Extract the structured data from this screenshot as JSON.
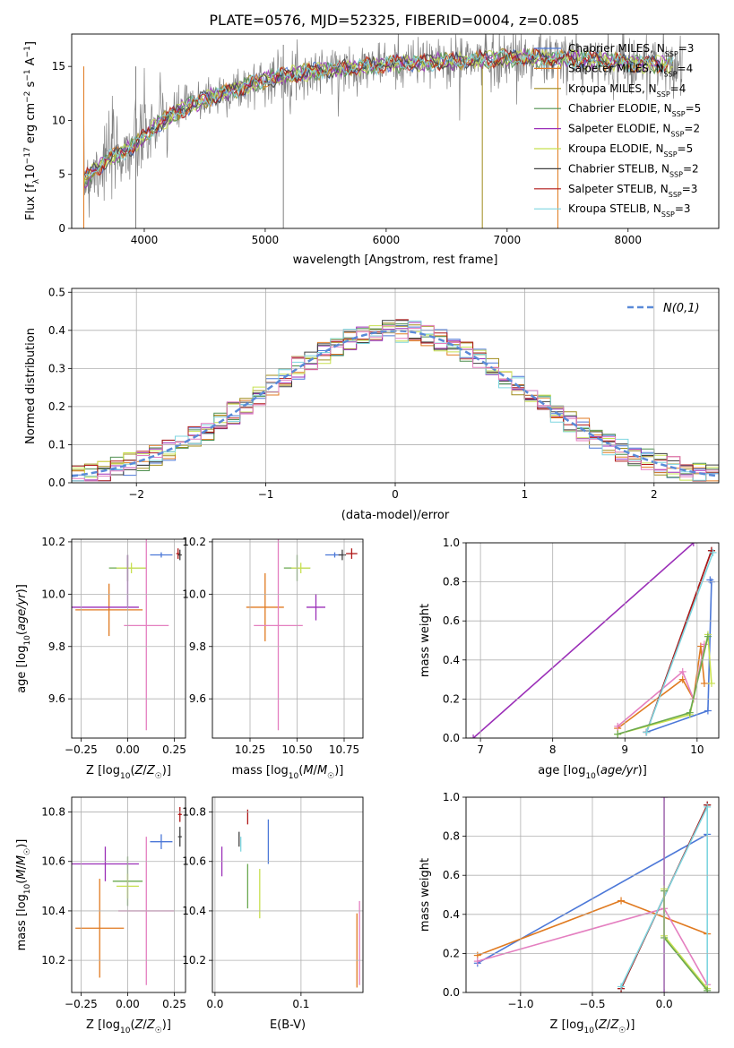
{
  "figure": {
    "title": "PLATE=0576, MJD=52325, FIBERID=0004, z=0.085"
  },
  "colors": {
    "blue": "#4c78d8",
    "orange": "#e07a20",
    "olive": "#a08c1c",
    "green": "#4f8f4f",
    "purple": "#9b2fb8",
    "yellowgreen": "#c8e050",
    "black": "#404040",
    "red": "#b01818",
    "cyan": "#7fd6e0",
    "gray": "#808080",
    "pink": "#e47fc0",
    "pale_green": "#6aa84f",
    "gaussian": "#5a8ad8"
  },
  "chart_data": [
    {
      "id": "spectrum",
      "type": "line",
      "xlabel": "wavelength [Angstrom, rest frame]",
      "ylabel": "Flux [f_λ10^-17 erg cm^-2 s^-1 A^-1]",
      "xlim": [
        3400,
        8750
      ],
      "ylim": [
        0,
        18
      ],
      "xticks": [
        4000,
        5000,
        6000,
        7000,
        8000
      ],
      "yticks": [
        0,
        5,
        10,
        15
      ],
      "grid": false,
      "legend_position": "top-right",
      "legend": [
        {
          "name": "Chabrier MILES",
          "n": "3",
          "color": "#4c78d8"
        },
        {
          "name": "Salpeter MILES",
          "n": "4",
          "color": "#e07a20"
        },
        {
          "name": "Kroupa MILES",
          "n": "4",
          "color": "#a08c1c"
        },
        {
          "name": "Chabrier ELODIE",
          "n": "5",
          "color": "#4f8f4f"
        },
        {
          "name": "Salpeter ELODIE",
          "n": "2",
          "color": "#9b2fb8"
        },
        {
          "name": "Kroupa ELODIE",
          "n": "5",
          "color": "#c8e050"
        },
        {
          "name": "Chabrier STELIB",
          "n": "2",
          "color": "#404040"
        },
        {
          "name": "Salpeter STELIB",
          "n": "3",
          "color": "#b01818"
        },
        {
          "name": "Kroupa STELIB",
          "n": "3",
          "color": "#7fd6e0"
        }
      ],
      "data_trend": {
        "x": [
          3500,
          3700,
          3900,
          4100,
          4300,
          4500,
          4800,
          5000,
          5200,
          5500,
          5800,
          6000,
          6300,
          6600,
          7000,
          7200,
          7400,
          7800,
          8200,
          8500
        ],
        "y": [
          4.5,
          6.5,
          7.5,
          9.5,
          11.0,
          12.0,
          13.0,
          13.8,
          14.2,
          14.7,
          15.0,
          15.2,
          15.4,
          15.5,
          15.8,
          15.8,
          15.7,
          15.5,
          15.2,
          15.0
        ]
      }
    },
    {
      "id": "residuals",
      "type": "area",
      "xlabel": "(data-model)/error",
      "ylabel": "Normed distribution",
      "xlim": [
        -2.5,
        2.5
      ],
      "ylim": [
        0,
        0.51
      ],
      "xticks": [
        -2,
        -1,
        0,
        1,
        2
      ],
      "yticks": [
        0.0,
        0.1,
        0.2,
        0.3,
        0.4,
        0.5
      ],
      "grid": true,
      "legend_position": "top-right",
      "gaussian_label": "N(0,1)",
      "bin_width": 0.1
    },
    {
      "id": "age_vs_Z",
      "type": "scatter",
      "xlabel": "Z [log10(Z/Z☉)]",
      "ylabel": "age  [log10(age/yr)]",
      "xlim": [
        -0.3,
        0.31
      ],
      "ylim": [
        9.45,
        10.21
      ],
      "xticks": [
        -0.25,
        0.0,
        0.25
      ],
      "yticks": [
        9.6,
        9.8,
        10.0,
        10.2
      ],
      "grid": true,
      "points": [
        {
          "x": 0.18,
          "xe": 0.06,
          "y": 10.15,
          "ye": 0.01,
          "c": "blue"
        },
        {
          "x": 0.27,
          "xe": 0.01,
          "y": 10.155,
          "ye": 0.02,
          "c": "red"
        },
        {
          "x": 0.28,
          "xe": 0.01,
          "y": 10.15,
          "ye": 0.02,
          "c": "black"
        },
        {
          "x": -0.1,
          "xe": 0.18,
          "y": 9.94,
          "ye": 0.1,
          "c": "orange"
        },
        {
          "x": 0.0,
          "xe": 0.1,
          "y": 10.1,
          "ye": 0.05,
          "c": "pale_green"
        },
        {
          "x": 0.02,
          "xe": 0.08,
          "y": 10.1,
          "ye": 0.02,
          "c": "yellowgreen"
        },
        {
          "x": -0.12,
          "xe": 0.18,
          "y": 9.95,
          "ye": 0.0,
          "c": "purple"
        },
        {
          "x": 0.1,
          "xe": 0.12,
          "y": 9.88,
          "ye": 0.4,
          "c": "pink"
        },
        {
          "x": 0.0,
          "xe": 0.0,
          "y": 10.05,
          "ye": 0.1,
          "c": "purple"
        }
      ]
    },
    {
      "id": "age_vs_mass",
      "type": "scatter",
      "xlabel": "mass [log10(M/M☉)]",
      "ylabel": "",
      "xlim": [
        10.05,
        10.85
      ],
      "ylim": [
        9.45,
        10.21
      ],
      "xticks": [
        10.25,
        10.5,
        10.75
      ],
      "yticks": [
        9.6,
        9.8,
        10.0,
        10.2
      ],
      "grid": true,
      "points": [
        {
          "x": 10.7,
          "xe": 0.05,
          "y": 10.15,
          "ye": 0.01,
          "c": "blue"
        },
        {
          "x": 10.79,
          "xe": 0.03,
          "y": 10.155,
          "ye": 0.02,
          "c": "red"
        },
        {
          "x": 10.74,
          "xe": 0.02,
          "y": 10.15,
          "ye": 0.02,
          "c": "black"
        },
        {
          "x": 10.33,
          "xe": 0.1,
          "y": 9.95,
          "ye": 0.13,
          "c": "orange"
        },
        {
          "x": 10.5,
          "xe": 0.07,
          "y": 10.1,
          "ye": 0.05,
          "c": "pale_green"
        },
        {
          "x": 10.52,
          "xe": 0.05,
          "y": 10.1,
          "ye": 0.02,
          "c": "yellowgreen"
        },
        {
          "x": 10.6,
          "xe": 0.05,
          "y": 9.95,
          "ye": 0.05,
          "c": "purple"
        },
        {
          "x": 10.4,
          "xe": 0.13,
          "y": 9.88,
          "ye": 0.4,
          "c": "pink"
        }
      ]
    },
    {
      "id": "weight_vs_age",
      "type": "line",
      "xlabel": "age  [log10(age/yr)]",
      "ylabel": "mass weight",
      "xlim": [
        6.8,
        10.3
      ],
      "ylim": [
        0,
        1
      ],
      "xticks": [
        7,
        8,
        9,
        10
      ],
      "yticks": [
        0.0,
        0.2,
        0.4,
        0.6,
        0.8,
        1.0
      ],
      "grid": true,
      "series": [
        {
          "c": "purple",
          "x": [
            6.9,
            9.95
          ],
          "y": [
            0.0,
            1.0
          ]
        },
        {
          "c": "blue",
          "x": [
            9.3,
            10.15,
            10.2,
            10.18
          ],
          "y": [
            0.03,
            0.14,
            0.8,
            0.81
          ]
        },
        {
          "c": "orange",
          "x": [
            8.9,
            9.8,
            9.95,
            10.05,
            10.1
          ],
          "y": [
            0.05,
            0.3,
            0.2,
            0.47,
            0.28
          ]
        },
        {
          "c": "pink",
          "x": [
            8.9,
            9.8,
            9.95,
            10.1
          ],
          "y": [
            0.06,
            0.34,
            0.2,
            0.48
          ]
        },
        {
          "c": "black",
          "x": [
            9.3,
            10.2
          ],
          "y": [
            0.03,
            0.96
          ]
        },
        {
          "c": "red",
          "x": [
            9.3,
            10.2
          ],
          "y": [
            0.03,
            0.96
          ]
        },
        {
          "c": "cyan",
          "x": [
            9.3,
            10.22
          ],
          "y": [
            0.03,
            0.95
          ]
        },
        {
          "c": "yellowgreen",
          "x": [
            8.9,
            9.9,
            10.15,
            10.2
          ],
          "y": [
            0.02,
            0.12,
            0.53,
            0.28
          ]
        },
        {
          "c": "pale_green",
          "x": [
            8.9,
            9.9,
            10.15
          ],
          "y": [
            0.02,
            0.13,
            0.52
          ]
        }
      ]
    },
    {
      "id": "mass_vs_Z",
      "type": "scatter",
      "xlabel": "Z [log10(Z/Z☉)]",
      "ylabel": "mass [log10(M/M☉)]",
      "xlim": [
        -0.3,
        0.31
      ],
      "ylim": [
        10.07,
        10.86
      ],
      "xticks": [
        -0.25,
        0.0,
        0.25
      ],
      "yticks": [
        10.2,
        10.4,
        10.6,
        10.8
      ],
      "grid": true,
      "points": [
        {
          "x": 0.18,
          "xe": 0.06,
          "y": 10.68,
          "ye": 0.03,
          "c": "blue"
        },
        {
          "x": 0.28,
          "xe": 0.01,
          "y": 10.79,
          "ye": 0.03,
          "c": "red"
        },
        {
          "x": 0.28,
          "xe": 0.01,
          "y": 10.7,
          "ye": 0.04,
          "c": "black"
        },
        {
          "x": -0.15,
          "xe": 0.13,
          "y": 10.33,
          "ye": 0.2,
          "c": "orange"
        },
        {
          "x": 0.0,
          "xe": 0.08,
          "y": 10.52,
          "ye": 0.1,
          "c": "pale_green"
        },
        {
          "x": 0.0,
          "xe": 0.06,
          "y": 10.5,
          "ye": 0.05,
          "c": "yellowgreen"
        },
        {
          "x": -0.12,
          "xe": 0.18,
          "y": 10.59,
          "ye": 0.07,
          "c": "purple"
        },
        {
          "x": 0.1,
          "xe": 0.15,
          "y": 10.4,
          "ye": 0.3,
          "c": "pink"
        }
      ]
    },
    {
      "id": "mass_vs_ebv",
      "type": "scatter",
      "xlabel": "E(B-V)",
      "ylabel": "",
      "xlim": [
        -0.003,
        0.172
      ],
      "ylim": [
        10.07,
        10.86
      ],
      "xticks": [
        0.0,
        0.1
      ],
      "yticks": [
        10.2,
        10.4,
        10.6,
        10.8
      ],
      "grid": true,
      "points": [
        {
          "x": 0.062,
          "xe": 0.0,
          "y": 10.68,
          "ye": 0.09,
          "c": "blue"
        },
        {
          "x": 0.038,
          "xe": 0.0,
          "y": 10.78,
          "ye": 0.03,
          "c": "red"
        },
        {
          "x": 0.028,
          "xe": 0.0,
          "y": 10.69,
          "ye": 0.03,
          "c": "black"
        },
        {
          "x": 0.165,
          "xe": 0.0,
          "y": 10.24,
          "ye": 0.15,
          "c": "orange"
        },
        {
          "x": 0.038,
          "xe": 0.0,
          "y": 10.5,
          "ye": 0.09,
          "c": "pale_green"
        },
        {
          "x": 0.052,
          "xe": 0.0,
          "y": 10.47,
          "ye": 0.1,
          "c": "yellowgreen"
        },
        {
          "x": 0.008,
          "xe": 0.0,
          "y": 10.6,
          "ye": 0.06,
          "c": "purple"
        },
        {
          "x": 0.168,
          "xe": 0.0,
          "y": 10.27,
          "ye": 0.17,
          "c": "pink"
        },
        {
          "x": 0.03,
          "xe": 0.0,
          "y": 10.67,
          "ye": 0.03,
          "c": "cyan"
        }
      ]
    },
    {
      "id": "weight_vs_Z",
      "type": "line",
      "xlabel": "Z [log10(Z/Z☉)]",
      "ylabel": "mass weight",
      "xlim": [
        -1.38,
        0.38
      ],
      "ylim": [
        0,
        1
      ],
      "xticks": [
        -1.0,
        -0.5,
        0.0
      ],
      "yticks": [
        0.0,
        0.2,
        0.4,
        0.6,
        0.8,
        1.0
      ],
      "grid": true,
      "series": [
        {
          "c": "blue",
          "x": [
            -1.3,
            0.3
          ],
          "y": [
            0.15,
            0.81
          ]
        },
        {
          "c": "orange",
          "x": [
            -1.3,
            -0.3,
            0.3
          ],
          "y": [
            0.19,
            0.47,
            0.3
          ]
        },
        {
          "c": "pink",
          "x": [
            -1.3,
            0.0,
            0.3
          ],
          "y": [
            0.16,
            0.43,
            0.04
          ]
        },
        {
          "c": "purple",
          "x": [
            0.0,
            0.0
          ],
          "y": [
            1.0,
            0.0
          ]
        },
        {
          "c": "black",
          "x": [
            -0.3,
            0.3
          ],
          "y": [
            0.02,
            0.96
          ]
        },
        {
          "c": "red",
          "x": [
            -0.3,
            0.3
          ],
          "y": [
            0.02,
            0.96
          ]
        },
        {
          "c": "cyan",
          "x": [
            -0.3,
            0.3,
            0.3
          ],
          "y": [
            0.03,
            0.95,
            0.0
          ]
        },
        {
          "c": "yellowgreen",
          "x": [
            0.0,
            0.0,
            0.3
          ],
          "y": [
            0.53,
            0.29,
            0.02
          ]
        },
        {
          "c": "pale_green",
          "x": [
            0.0,
            0.0,
            0.3
          ],
          "y": [
            0.52,
            0.28,
            0.01
          ]
        }
      ]
    }
  ]
}
